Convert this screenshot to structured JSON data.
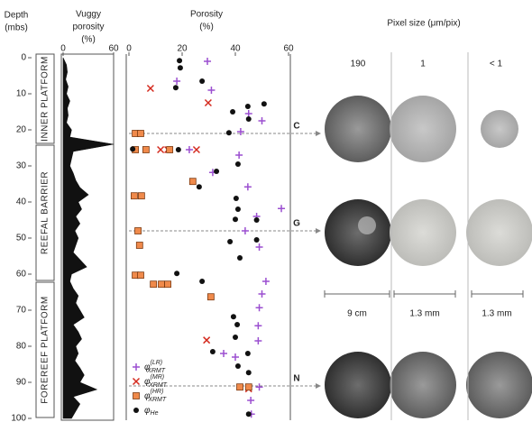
{
  "chart_data": [
    {
      "type": "area",
      "title": [
        "Vuggy",
        "porosity",
        "(%)"
      ],
      "ylabel": [
        "Depth",
        "(mbs)"
      ],
      "ylim": [
        0,
        100
      ],
      "yticks": [
        0,
        10,
        20,
        30,
        40,
        50,
        60,
        70,
        80,
        90,
        100
      ],
      "xlim": [
        0,
        60
      ],
      "xticks": [
        0,
        60
      ],
      "color": "#111111",
      "zones": [
        {
          "label": "INNER PLATFORM",
          "from": 0,
          "to": 24
        },
        {
          "label": "REEFAL BARRIER",
          "from": 24,
          "to": 62
        },
        {
          "label": "FOREREEF PLATFORM",
          "from": 62,
          "to": 100
        }
      ],
      "depth": [
        0,
        2,
        4,
        6,
        8,
        10,
        12,
        14,
        16,
        18,
        20,
        22,
        24,
        26,
        28,
        30,
        32,
        34,
        36,
        38,
        40,
        42,
        44,
        46,
        48,
        50,
        52,
        54,
        56,
        58,
        60,
        62,
        64,
        66,
        68,
        70,
        72,
        74,
        76,
        78,
        80,
        82,
        84,
        86,
        88,
        90,
        92,
        94,
        96,
        98,
        100
      ],
      "values": [
        0,
        4,
        5,
        3,
        6,
        4,
        8,
        5,
        6,
        4,
        10,
        8,
        60,
        12,
        10,
        8,
        12,
        15,
        20,
        30,
        18,
        22,
        15,
        20,
        14,
        18,
        15,
        12,
        20,
        28,
        10,
        8,
        12,
        18,
        15,
        20,
        25,
        12,
        18,
        22,
        15,
        18,
        14,
        20,
        25,
        20,
        40,
        12,
        20,
        15,
        10
      ]
    },
    {
      "type": "scatter",
      "title": [
        "Porosity",
        "(%)"
      ],
      "ylim": [
        0,
        100
      ],
      "xlim": [
        0,
        60
      ],
      "xticks": [
        0,
        20,
        40,
        60
      ],
      "markers": [
        {
          "label": "C",
          "depth": 21
        },
        {
          "label": "G",
          "depth": 48
        },
        {
          "label": "N",
          "depth": 91
        }
      ],
      "series": [
        {
          "name": "φ",
          "sup": "(LR)",
          "sub": "XRMT",
          "marker": "plus",
          "color": "#9b4fd0",
          "depth": [
            1,
            6.5,
            9,
            17.5,
            20.5,
            15.5,
            25.5,
            27,
            31.8,
            35.8,
            41.8,
            44,
            48,
            52.5,
            62,
            65.5,
            69.3,
            74.3,
            78.5,
            83,
            82,
            91.3,
            95,
            98.8
          ],
          "values": [
            29.5,
            18,
            31,
            50,
            42,
            45,
            22.7,
            41.4,
            31.5,
            44.7,
            57.3,
            48,
            43.7,
            49,
            51.5,
            50,
            49,
            48.6,
            48.6,
            40,
            35.6,
            49,
            45.8,
            46
          ]
        },
        {
          "name": "φ",
          "sup": "(MR)",
          "sub": "XRMT",
          "marker": "cross",
          "color": "#d42a1e",
          "depth": [
            8.5,
            12.5,
            25.5,
            25.5,
            25.5,
            78.3,
            91.8
          ],
          "values": [
            8.1,
            29.8,
            11.9,
            14.6,
            25.4,
            29.2,
            45
          ]
        },
        {
          "name": "φ",
          "sup": "(HR)",
          "sub": "XRMT",
          "marker": "square",
          "color": "#f08a4b",
          "depth": [
            21,
            21,
            25.5,
            25.5,
            25.5,
            34.3,
            38.3,
            38.3,
            48,
            52,
            60.3,
            60.3,
            62.8,
            62.8,
            62.8,
            66.3,
            91.3,
            91.3
          ],
          "values": [
            2.4,
            4.4,
            2.4,
            6.4,
            15.3,
            24,
            2,
            4.7,
            3.4,
            4,
            2.4,
            4.4,
            9.2,
            12.2,
            14.6,
            30.8,
            41.7,
            45
          ]
        },
        {
          "name": "φ",
          "sub": "He",
          "marker": "dot",
          "color": "#111111",
          "depth": [
            0.8,
            2.8,
            8.3,
            6.5,
            12.8,
            13.5,
            17,
            15,
            20.8,
            25.3,
            25.5,
            29.5,
            31.5,
            35.8,
            39,
            42,
            44.8,
            45,
            50.5,
            51,
            55.5,
            59.8,
            62,
            71.8,
            74,
            77.5,
            81.5,
            82,
            85.5,
            87.3,
            98.8
          ],
          "values": [
            19,
            19.3,
            17.6,
            27.5,
            50.8,
            44.7,
            45,
            39,
            37.6,
            1.4,
            18.6,
            41,
            32.9,
            26.4,
            40.3,
            41,
            40,
            48,
            48,
            38,
            41.7,
            18,
            27.5,
            39.3,
            40.7,
            40,
            31.5,
            44.7,
            41,
            45,
            45
          ]
        }
      ]
    }
  ],
  "images": {
    "title": "Pixel size (μm/pix)",
    "columns": [
      "190",
      "1",
      "< 1"
    ],
    "scale_bars": [
      "9 cm",
      "1.3 mm",
      "1.3 mm"
    ]
  }
}
